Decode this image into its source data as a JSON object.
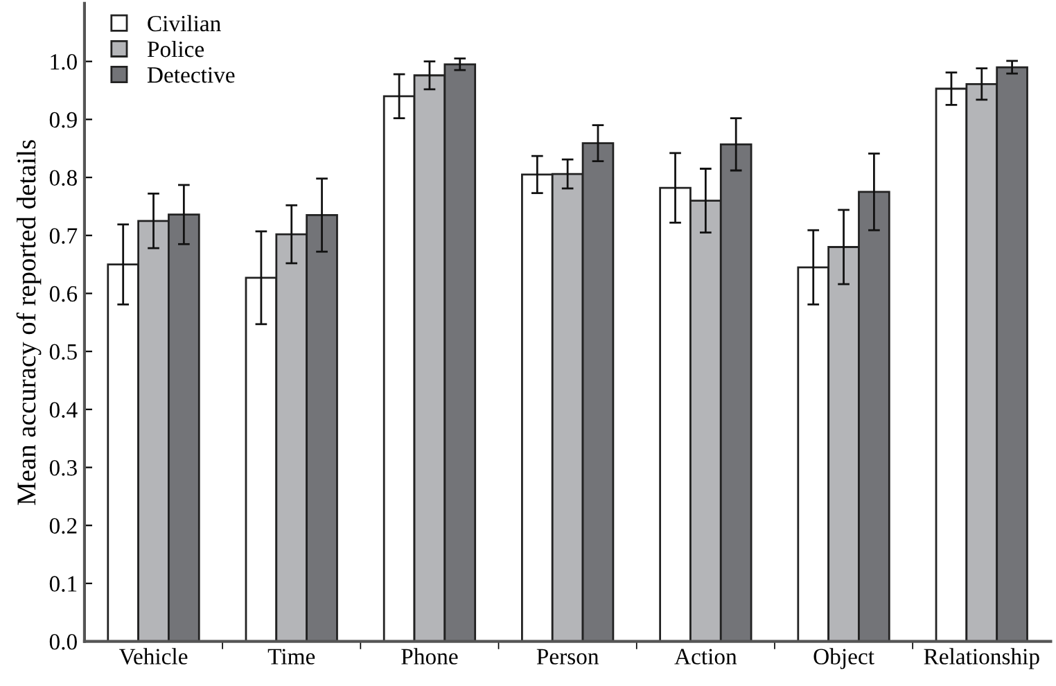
{
  "chart_data": {
    "type": "bar",
    "ylabel": "Mean accuracy of reported details",
    "categories": [
      "Vehicle",
      "Time",
      "Phone",
      "Person",
      "Action",
      "Object",
      "Relationship"
    ],
    "series": [
      {
        "name": "Civilian",
        "color": "#ffffff",
        "values": [
          0.65,
          0.627,
          0.94,
          0.805,
          0.782,
          0.645,
          0.953
        ],
        "errors": [
          0.069,
          0.08,
          0.038,
          0.032,
          0.06,
          0.064,
          0.028
        ]
      },
      {
        "name": "Police",
        "color": "#b4b5b8",
        "values": [
          0.725,
          0.702,
          0.976,
          0.806,
          0.76,
          0.68,
          0.961
        ],
        "errors": [
          0.047,
          0.05,
          0.024,
          0.025,
          0.055,
          0.064,
          0.027
        ]
      },
      {
        "name": "Detective",
        "color": "#737478",
        "values": [
          0.736,
          0.735,
          0.995,
          0.859,
          0.857,
          0.775,
          0.99
        ],
        "errors": [
          0.051,
          0.063,
          0.01,
          0.031,
          0.045,
          0.066,
          0.011
        ]
      }
    ],
    "ylim": [
      0,
      1.1
    ],
    "yticks": [
      {
        "value": 0,
        "label": "0.0"
      },
      0.1,
      0.2,
      0.3,
      0.4,
      0.5,
      0.6,
      0.7,
      0.8,
      0.9,
      {
        "value": 1,
        "label": "1.0"
      }
    ],
    "legend": "top left",
    "grid": false
  }
}
